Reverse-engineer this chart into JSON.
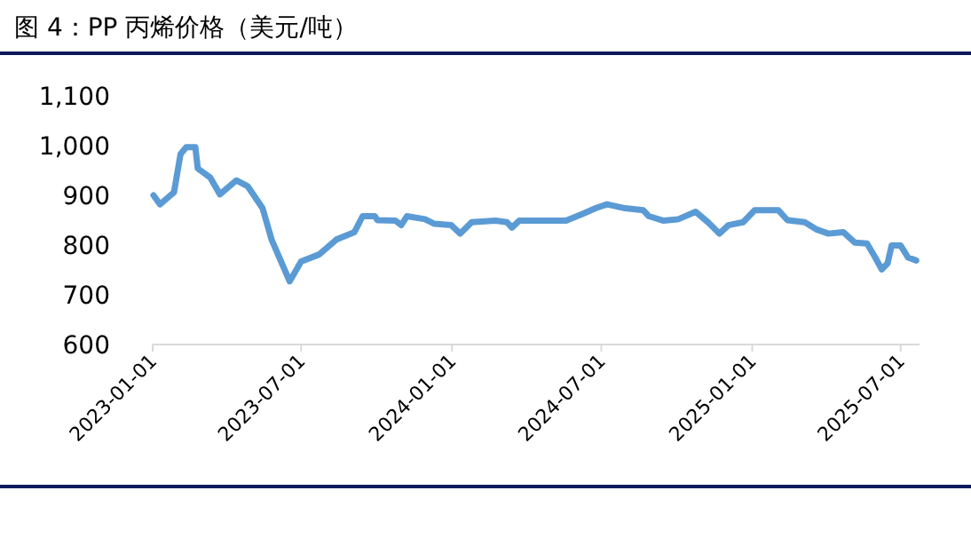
{
  "chart_data": {
    "type": "line",
    "title": "图 4：PP 丙烯价格（美元/吨）",
    "x": [
      "2023-01-02",
      "2023-01-10",
      "2023-01-27",
      "2023-02-04",
      "2023-02-11",
      "2023-02-22",
      "2023-02-25",
      "2023-03-12",
      "2023-03-24",
      "2023-04-13",
      "2023-04-27",
      "2023-05-15",
      "2023-05-26",
      "2023-06-17",
      "2023-07-01",
      "2023-07-23",
      "2023-08-13",
      "2023-09-04",
      "2023-09-14",
      "2023-09-29",
      "2023-10-02",
      "2023-10-24",
      "2023-10-31",
      "2023-11-07",
      "2023-11-29",
      "2023-12-10",
      "2023-12-31",
      "2024-01-11",
      "2024-01-25",
      "2024-02-23",
      "2024-03-08",
      "2024-03-14",
      "2024-03-23",
      "2024-05-19",
      "2024-06-10",
      "2024-06-24",
      "2024-07-08",
      "2024-07-30",
      "2024-08-21",
      "2024-08-28",
      "2024-09-15",
      "2024-10-03",
      "2024-10-24",
      "2024-11-08",
      "2024-11-22",
      "2024-12-03",
      "2024-12-21",
      "2025-01-04",
      "2025-02-02",
      "2025-02-13",
      "2025-03-06",
      "2025-03-21",
      "2025-04-04",
      "2025-04-22",
      "2025-05-06",
      "2025-05-21",
      "2025-05-31",
      "2025-06-08",
      "2025-06-15",
      "2025-06-20",
      "2025-07-01",
      "2025-07-10",
      "2025-07-20"
    ],
    "series": [
      {
        "color": "#5b9bd5",
        "values": [
          900,
          882,
          906,
          983,
          997,
          997,
          954,
          936,
          902,
          930,
          918,
          874,
          811,
          727,
          767,
          781,
          811,
          826,
          858,
          858,
          850,
          849,
          840,
          858,
          852,
          843,
          840,
          823,
          846,
          849,
          846,
          835,
          849,
          849,
          864,
          874,
          882,
          874,
          870,
          858,
          849,
          852,
          867,
          846,
          823,
          840,
          846,
          870,
          870,
          850,
          846,
          831,
          823,
          826,
          805,
          803,
          775,
          751,
          763,
          799,
          799,
          775,
          769
        ]
      }
    ],
    "xlim": [
      "2023-01-01",
      "2025-07-24"
    ],
    "xticks": [
      {
        "value": "2023-01-01",
        "label": "2023-01-01"
      },
      {
        "value": "2023-07-01",
        "label": "2023-07-01"
      },
      {
        "value": "2024-01-01",
        "label": "2024-01-01"
      },
      {
        "value": "2024-07-01",
        "label": "2024-07-01"
      },
      {
        "value": "2025-01-01",
        "label": "2025-01-01"
      },
      {
        "value": "2025-07-01",
        "label": "2025-07-01"
      }
    ],
    "ylim": [
      600,
      1100
    ],
    "yticks": [
      600,
      700,
      800,
      900,
      {
        "value": 1000,
        "label": "1,000"
      },
      {
        "value": 1100,
        "label": "1,100"
      }
    ],
    "grid": false,
    "marker": "none",
    "line_style": "solid"
  }
}
